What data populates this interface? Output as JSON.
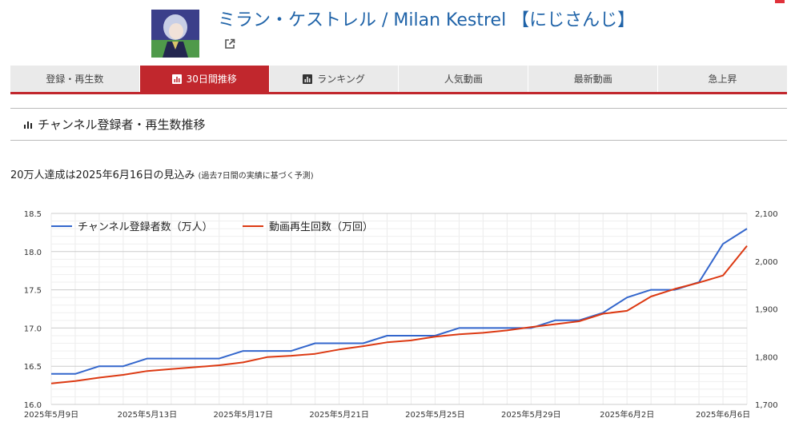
{
  "channel": {
    "name": "ミラン・ケストレル / Milan Kestrel 【にじさんじ】"
  },
  "tabs": [
    {
      "label": "登録・再生数",
      "icon": "",
      "active": false
    },
    {
      "label": "30日間推移",
      "icon": "bar-chart-icon",
      "active": true
    },
    {
      "label": "ランキング",
      "icon": "bar-chart-icon",
      "active": false
    },
    {
      "label": "人気動画",
      "icon": "",
      "active": false
    },
    {
      "label": "最新動画",
      "icon": "",
      "active": false
    },
    {
      "label": "急上昇",
      "icon": "",
      "active": false
    }
  ],
  "section": {
    "title": "チャンネル登録者・再生数推移"
  },
  "forecast": {
    "text": "20万人達成は2025年6月16日の見込み",
    "note": "(過去7日間の実績に基づく予測)"
  },
  "colors": {
    "accent": "#c1272d",
    "subscribers": "#3366cc",
    "views": "#dc3912",
    "link": "#1f63a8"
  },
  "chart_data": {
    "type": "line",
    "x": [
      "2025年5月9日",
      "2025年5月10日",
      "2025年5月11日",
      "2025年5月12日",
      "2025年5月13日",
      "2025年5月14日",
      "2025年5月15日",
      "2025年5月16日",
      "2025年5月17日",
      "2025年5月18日",
      "2025年5月19日",
      "2025年5月20日",
      "2025年5月21日",
      "2025年5月22日",
      "2025年5月23日",
      "2025年5月24日",
      "2025年5月25日",
      "2025年5月26日",
      "2025年5月27日",
      "2025年5月28日",
      "2025年5月29日",
      "2025年5月30日",
      "2025年5月31日",
      "2025年6月1日",
      "2025年6月2日",
      "2025年6月3日",
      "2025年6月4日",
      "2025年6月5日",
      "2025年6月6日",
      "2025年6月7日"
    ],
    "xticks": [
      "2025年5月9日",
      "2025年5月13日",
      "2025年5月17日",
      "2025年5月21日",
      "2025年5月25日",
      "2025年5月29日",
      "2025年6月2日",
      "2025年6月6日"
    ],
    "series": [
      {
        "name": "チャンネル登録者数（万人）",
        "axis": "left",
        "values": [
          16.4,
          16.4,
          16.5,
          16.5,
          16.6,
          16.6,
          16.6,
          16.6,
          16.7,
          16.7,
          16.7,
          16.8,
          16.8,
          16.8,
          16.9,
          16.9,
          16.9,
          17.0,
          17.0,
          17.0,
          17.0,
          17.1,
          17.1,
          17.2,
          17.4,
          17.5,
          17.5,
          17.6,
          18.1,
          18.3
        ]
      },
      {
        "name": "動画再生回数（万回）",
        "axis": "right",
        "values": [
          1744,
          1749,
          1756,
          1762,
          1770,
          1774,
          1778,
          1782,
          1788,
          1799,
          1802,
          1806,
          1815,
          1822,
          1830,
          1834,
          1842,
          1847,
          1850,
          1855,
          1862,
          1868,
          1874,
          1890,
          1896,
          1926,
          1942,
          1955,
          1970,
          2032
        ]
      }
    ],
    "yleft": {
      "ylim": [
        16.0,
        18.5
      ],
      "ticks": [
        "16.0",
        "16.5",
        "17.0",
        "17.5",
        "18.0",
        "18.5"
      ]
    },
    "yright": {
      "ylim": [
        1700,
        2100
      ],
      "ticks": [
        "1,700",
        "1,800",
        "1,900",
        "2,000",
        "2,100"
      ]
    },
    "grid": true,
    "legend": "top-left"
  }
}
